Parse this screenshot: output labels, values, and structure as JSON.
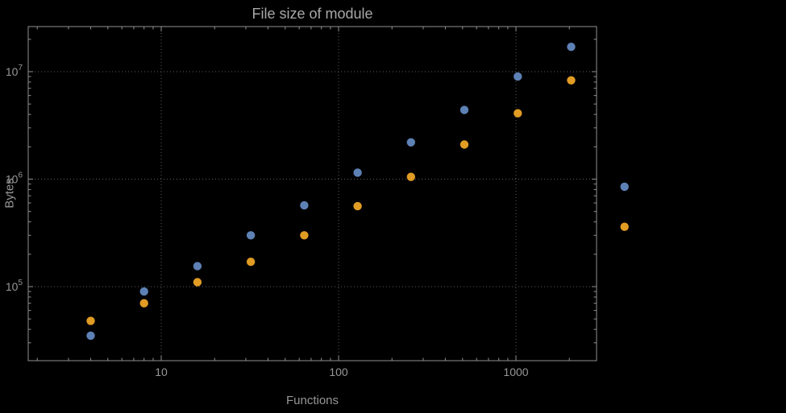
{
  "chart_data": {
    "type": "scatter",
    "title": "File size of module",
    "xlabel": "Functions",
    "ylabel": "Bytes",
    "x_scale": "log",
    "y_scale": "log",
    "grid": "dotted",
    "legend": "none",
    "x_ticks": [
      10,
      100,
      1000
    ],
    "x_tick_labels": [
      "10",
      "100",
      "1000"
    ],
    "y_ticks": [
      100000,
      1000000,
      10000000
    ],
    "y_tick_labels": [
      "10^5",
      "10^6",
      "10^7"
    ],
    "x_range": [
      1.5,
      2800
    ],
    "y_range": [
      21000,
      26000000
    ],
    "x": [
      4,
      8,
      16,
      32,
      64,
      128,
      256,
      512,
      1024,
      2048,
      4096
    ],
    "series": [
      {
        "name": "series-blue",
        "color": "#5E81B5",
        "values": [
          35000,
          90000,
          155000,
          300000,
          570000,
          1150000,
          2200000,
          4400000,
          9000000,
          17000000,
          850000
        ]
      },
      {
        "name": "series-orange",
        "color": "#E19C24",
        "values": [
          48000,
          70000,
          110000,
          170000,
          300000,
          560000,
          1050000,
          2100000,
          4100000,
          8300000,
          360000
        ]
      }
    ]
  },
  "colors": {
    "background": "#000000",
    "frame": "#8f8f8f",
    "grid": "#5d5d5d",
    "text": "#979797",
    "title": "#a8a8a8"
  }
}
